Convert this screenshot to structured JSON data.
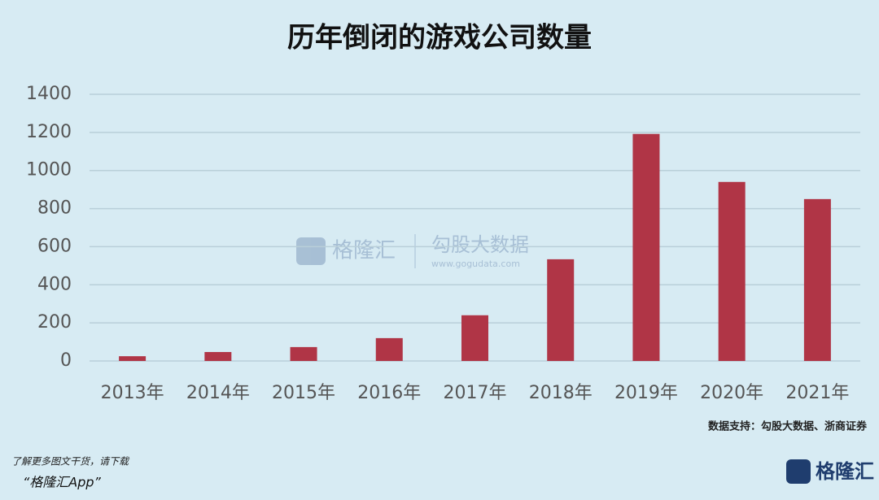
{
  "chart_data": {
    "type": "bar",
    "title": "历年倒闭的游戏公司数量",
    "categories": [
      "2013年",
      "2014年",
      "2015年",
      "2016年",
      "2017年",
      "2018年",
      "2019年",
      "2020年",
      "2021年"
    ],
    "values": [
      25,
      47,
      73,
      120,
      240,
      534,
      1192,
      940,
      850
    ],
    "color": "#b03546",
    "ylim": [
      0,
      1400
    ],
    "yticks": [
      0,
      200,
      400,
      600,
      800,
      1000,
      1200,
      1400
    ],
    "grid": true,
    "source": "数据支持：勾股大数据、浙商证券"
  },
  "watermark": {
    "brand": "格隆汇",
    "partner": "勾股大数据",
    "url": "www.gogudata.com"
  },
  "footer": {
    "line1": "了解更多图文干货，请下载",
    "line2": "“格隆汇App”",
    "logo": "格隆汇"
  }
}
